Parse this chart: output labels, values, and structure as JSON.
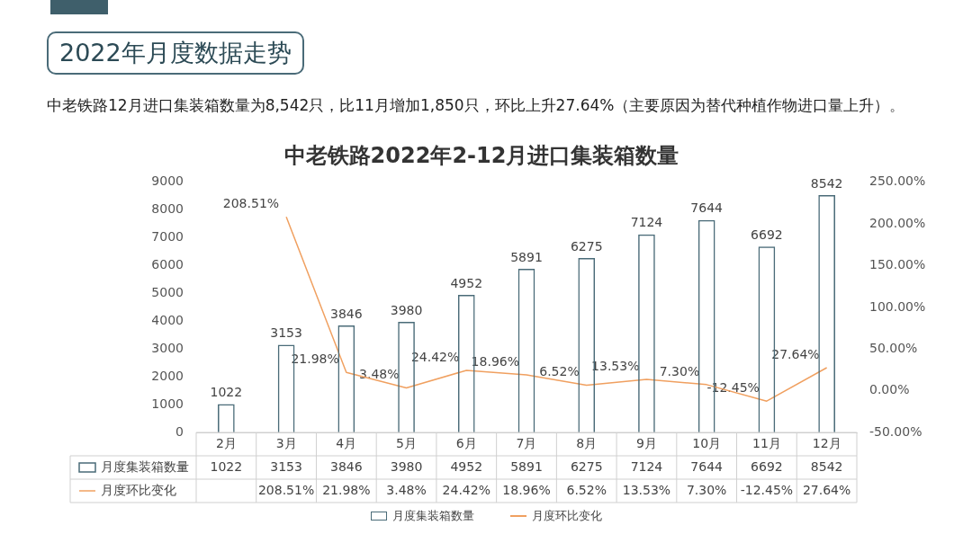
{
  "chart_data": {
    "type": "bar",
    "title": "中老铁路2022年2-12月进口集装箱数量",
    "annotations": [
      "2022年月度数据走势",
      "中老铁路12月进口集装箱数量为8,542只，比11月增加1,850只，环比上升27.64%（主要原因为替代种植作物进口量上升）。"
    ],
    "categories": [
      "2月",
      "3月",
      "4月",
      "5月",
      "6月",
      "7月",
      "8月",
      "9月",
      "10月",
      "11月",
      "12月"
    ],
    "series": [
      {
        "name": "月度集装箱数量",
        "color": "#4a6b78",
        "values": [
          1022,
          3153,
          3846,
          3980,
          4952,
          5891,
          6275,
          7124,
          7644,
          6692,
          8542
        ],
        "value_labels": [
          "1022",
          "3153",
          "3846",
          "3980",
          "4952",
          "5891",
          "6275",
          "7124",
          "7644",
          "6692",
          "8542"
        ]
      },
      {
        "name": "月度环比变化",
        "type": "line",
        "axis": "y2",
        "color": "#f0a060",
        "values": [
          null,
          208.51,
          21.98,
          3.48,
          24.42,
          18.96,
          6.52,
          13.53,
          7.3,
          -12.45,
          27.64
        ],
        "value_labels": [
          null,
          "208.51%",
          "21.98%",
          "3.48%",
          "24.42%",
          "18.96%",
          "6.52%",
          "13.53%",
          "7.30%",
          "-12.45%",
          "27.64%"
        ]
      }
    ],
    "ylim": [
      0,
      9000
    ],
    "yticks": [
      0,
      1000,
      2000,
      3000,
      4000,
      5000,
      6000,
      7000,
      8000,
      9000
    ],
    "y2lim": [
      -50,
      250
    ],
    "y2ticks": [
      {
        "value": -50,
        "label": "-50.00%"
      },
      {
        "value": 0,
        "label": "0.00%"
      },
      {
        "value": 50,
        "label": "50.00%"
      },
      {
        "value": 100,
        "label": "100.00%"
      },
      {
        "value": 150,
        "label": "150.00%"
      },
      {
        "value": 200,
        "label": "200.00%"
      },
      {
        "value": 250,
        "label": "250.00%"
      }
    ],
    "legend": "bottom",
    "marker": "none"
  }
}
